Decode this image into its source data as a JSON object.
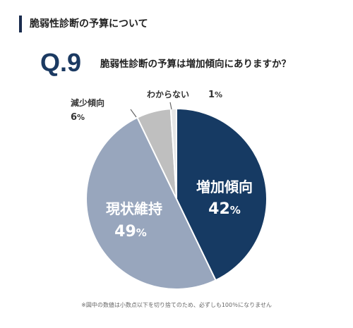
{
  "section_title": "脆弱性診断の予算について",
  "question_number": "Q.9",
  "question": "脆弱性診断の予算は増加傾向にありますか？",
  "footnote": "※図中の数値は小数点以下を切り捨てのため、必ずしも100％になりません",
  "colors": {
    "increase": "#163a63",
    "maintain": "#98a6bd",
    "decrease": "#bfbfbf",
    "unknown": "#e6e6e6"
  },
  "chart_data": {
    "type": "pie",
    "title": "",
    "slices": [
      {
        "label": "増加傾向",
        "value": 42,
        "value_label": "42",
        "unit": "%"
      },
      {
        "label": "現状維持",
        "value": 49,
        "value_label": "49",
        "unit": "%"
      },
      {
        "label": "減少傾向",
        "value": 6,
        "value_label": "6",
        "unit": "%"
      },
      {
        "label": "わからない",
        "value": 1,
        "value_label": "1",
        "unit": "%"
      }
    ]
  }
}
